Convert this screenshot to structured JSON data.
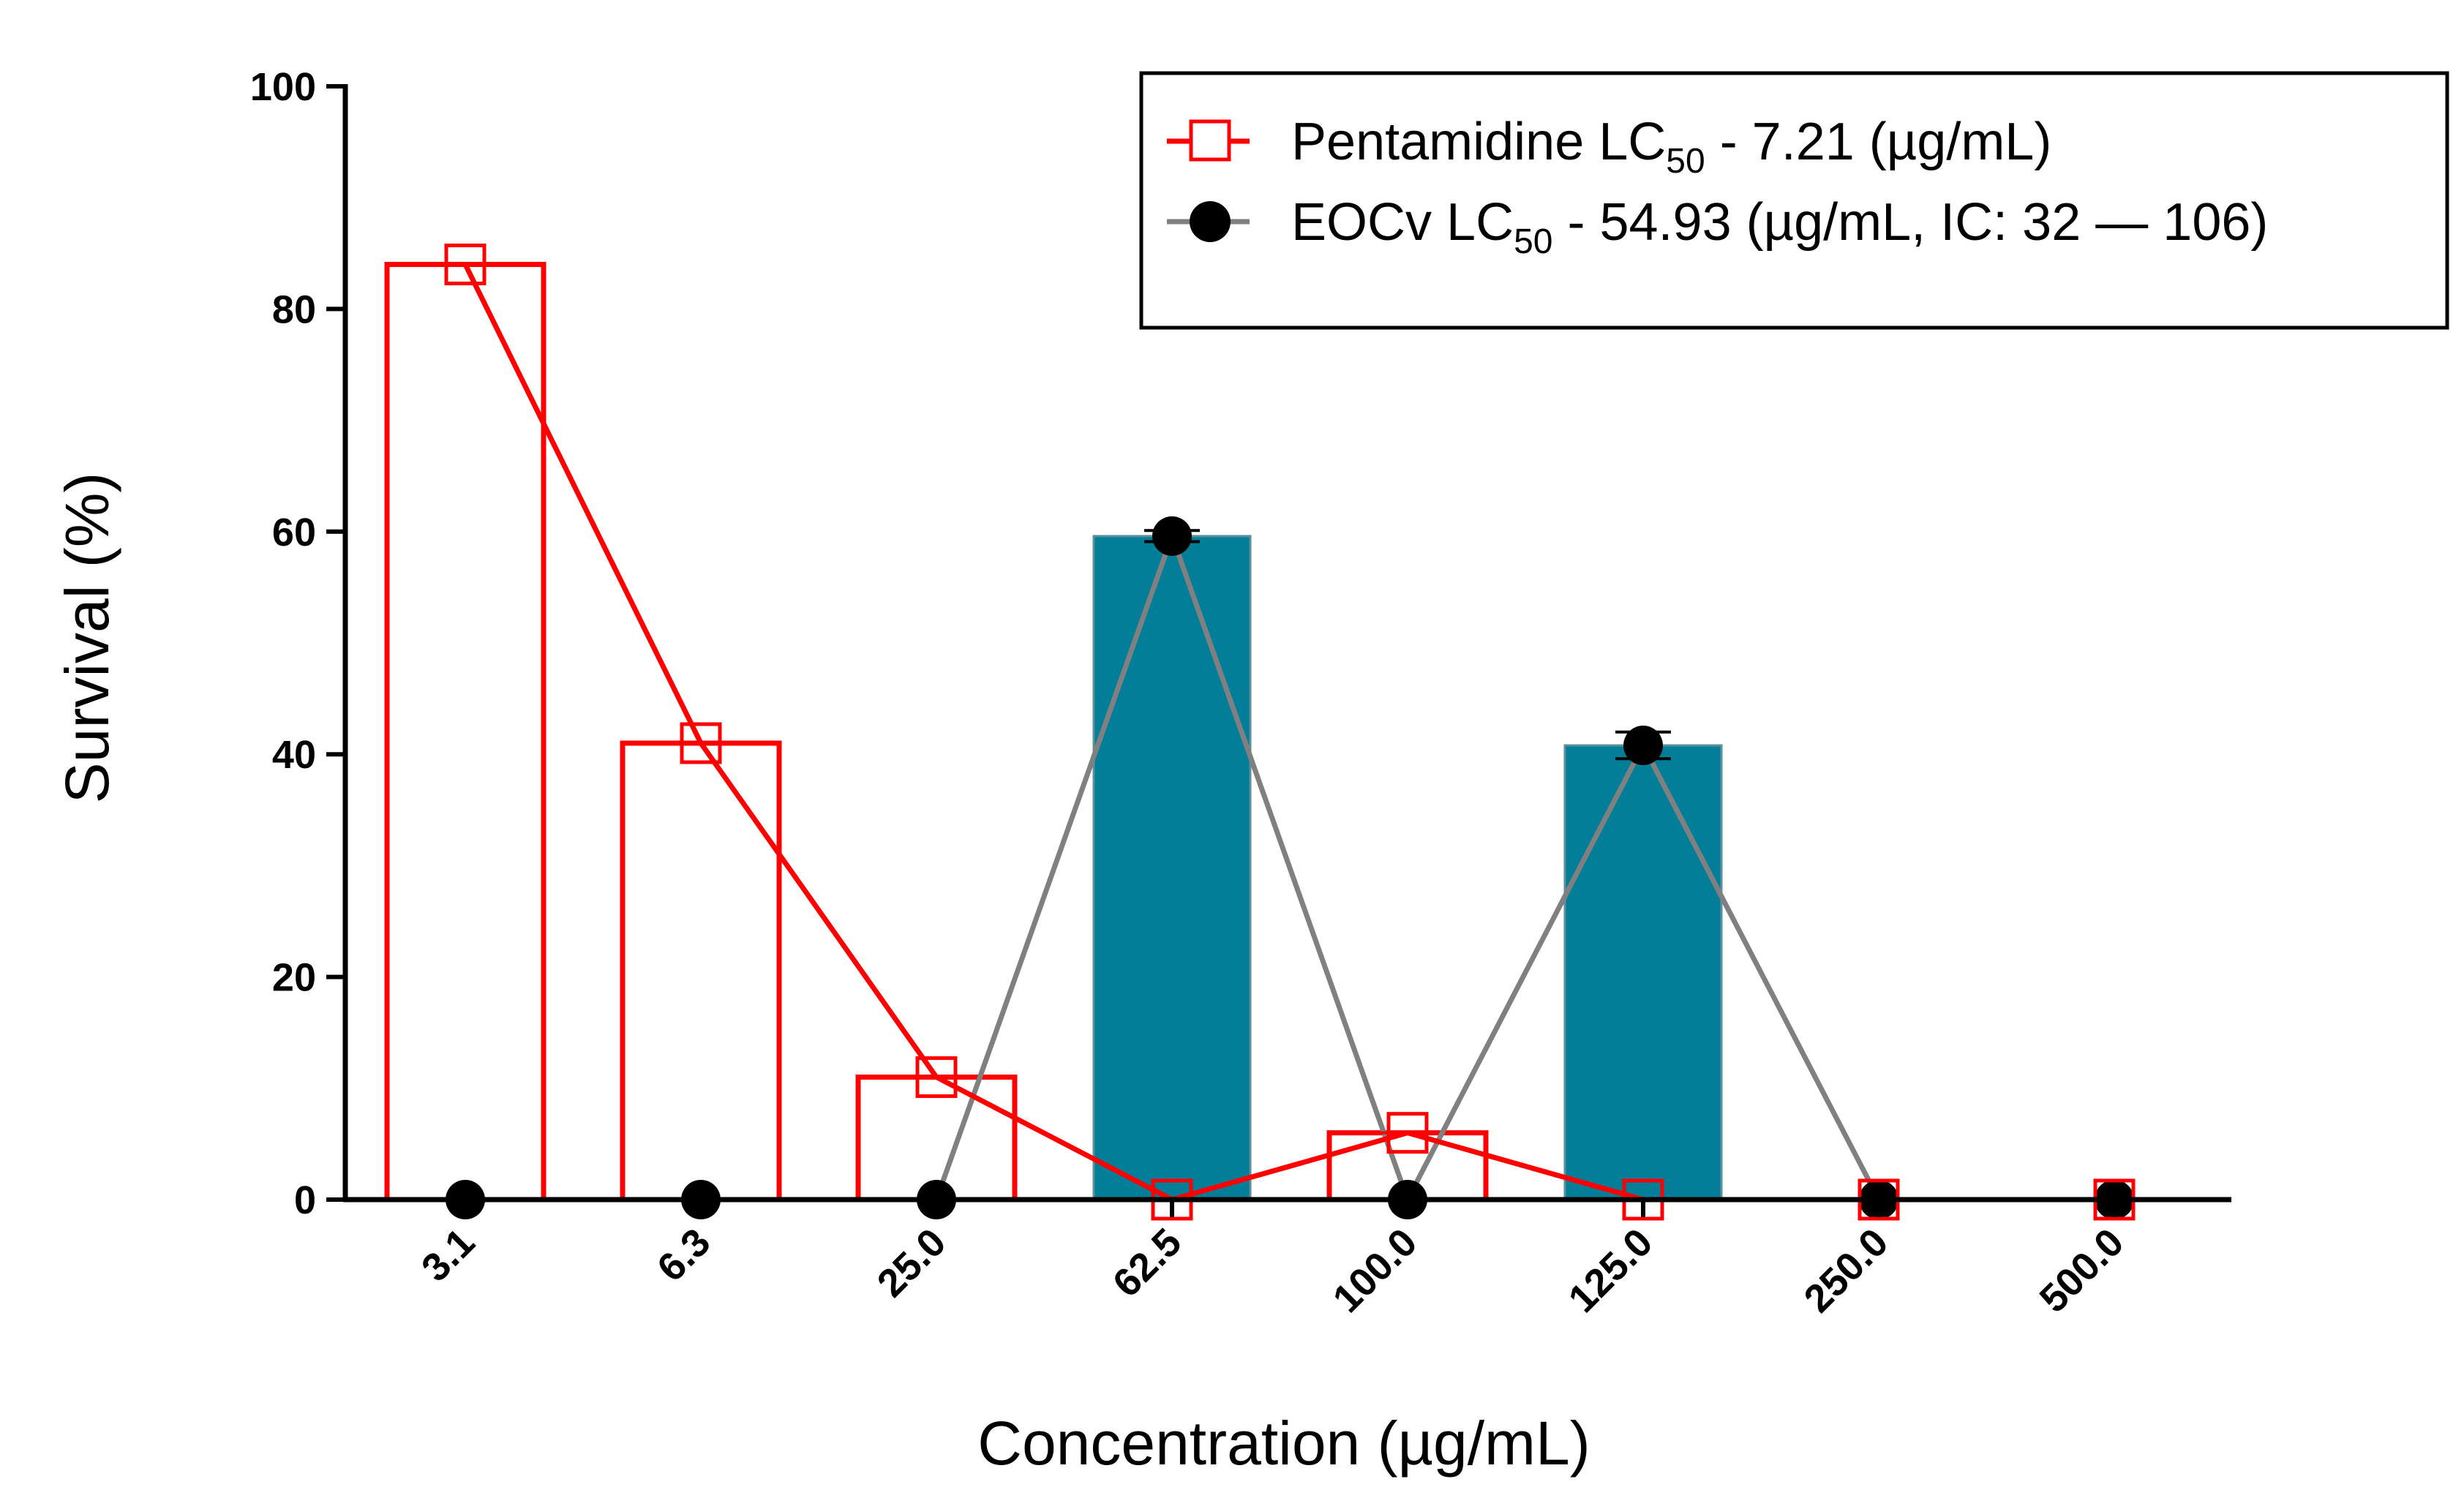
{
  "chart_data": {
    "type": "bar",
    "title": "",
    "xlabel": "Concentration (µg/mL)",
    "ylabel": "Survival (%)",
    "ylim": [
      0,
      100
    ],
    "yticks": [
      "0",
      "20",
      "40",
      "60",
      "80",
      "100"
    ],
    "categories": [
      "3.1",
      "6.3",
      "25.0",
      "62.5",
      "100.0",
      "125.0",
      "250.0",
      "500.0"
    ],
    "grid": false,
    "legend_position": "top-right",
    "series": [
      {
        "name": "Pentamidine",
        "legend_label": {
          "prefix": "Pentamidine LC",
          "subscript": "50",
          "suffix": " - 7.21 (µg/mL)"
        },
        "values": [
          84,
          41,
          11,
          0,
          6,
          0,
          0,
          0
        ],
        "bar_style": "outline",
        "marker": "open-square",
        "color": "#ff0000"
      },
      {
        "name": "EOCv",
        "legend_label": {
          "prefix": "EOCv LC",
          "subscript": "50",
          "suffix": " - 54.93 (µg/mL, IC: 32 — 106)"
        },
        "values": [
          0,
          0,
          0,
          59.6,
          0,
          40.8,
          0,
          0
        ],
        "errors": [
          0,
          0,
          0,
          0.5,
          0,
          1.2,
          0,
          0
        ],
        "bar_style": "filled",
        "bar_color": "#027e99",
        "marker": "filled-circle",
        "color": "#808080",
        "marker_color": "#000000"
      }
    ]
  }
}
